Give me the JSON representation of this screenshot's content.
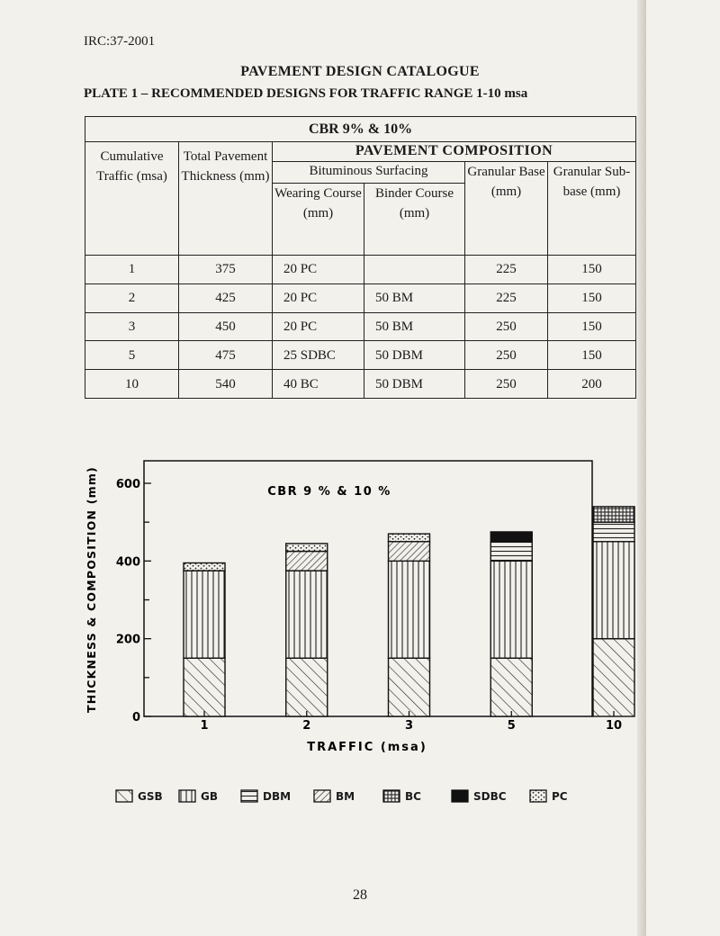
{
  "header": {
    "doc_id": "IRC:37-2001",
    "catalogue_title": "PAVEMENT DESIGN CATALOGUE",
    "plate_title": "PLATE 1 – RECOMMENDED DESIGNS FOR TRAFFIC RANGE 1-10 msa"
  },
  "table": {
    "cbr_label": "CBR 9% & 10%",
    "composition_label": "PAVEMENT COMPOSITION",
    "bituminous_label": "Bituminous Surfacing",
    "col_traffic": "Cumulative Traffic (msa)",
    "col_thickness": "Total Pavement Thickness (mm)",
    "col_wearing": "Wearing Course (mm)",
    "col_binder": "Binder Course (mm)",
    "col_base": "Granular Base (mm)",
    "col_subbase": "Granular Sub-base (mm)",
    "rows": [
      {
        "traffic": "1",
        "thickness": "375",
        "wearing": "20 PC",
        "binder": "",
        "base": "225",
        "subbase": "150"
      },
      {
        "traffic": "2",
        "thickness": "425",
        "wearing": "20 PC",
        "binder": "50 BM",
        "base": "225",
        "subbase": "150"
      },
      {
        "traffic": "3",
        "thickness": "450",
        "wearing": "20 PC",
        "binder": "50 BM",
        "base": "250",
        "subbase": "150"
      },
      {
        "traffic": "5",
        "thickness": "475",
        "wearing": "25 SDBC",
        "binder": "50 DBM",
        "base": "250",
        "subbase": "150"
      },
      {
        "traffic": "10",
        "thickness": "540",
        "wearing": "40 BC",
        "binder": "50 DBM",
        "base": "250",
        "subbase": "200"
      }
    ]
  },
  "chart_data": {
    "type": "bar",
    "stacked": true,
    "title": "CBR 9 % & 10 %",
    "xlabel": "TRAFFIC (msa)",
    "ylabel": "THICKNESS & COMPOSITION (mm)",
    "categories": [
      "1",
      "2",
      "3",
      "5",
      "10"
    ],
    "ylim": [
      0,
      650
    ],
    "yticks": [
      0,
      200,
      400,
      600
    ],
    "series": [
      {
        "name": "GSB",
        "values": [
          150,
          150,
          150,
          150,
          200
        ]
      },
      {
        "name": "GB",
        "values": [
          225,
          225,
          250,
          250,
          250
        ]
      },
      {
        "name": "DBM",
        "values": [
          0,
          0,
          0,
          50,
          50
        ]
      },
      {
        "name": "BM",
        "values": [
          0,
          50,
          50,
          0,
          0
        ]
      },
      {
        "name": "BC",
        "values": [
          0,
          0,
          0,
          0,
          40
        ]
      },
      {
        "name": "SDBC",
        "values": [
          0,
          0,
          0,
          25,
          0
        ]
      },
      {
        "name": "PC",
        "values": [
          20,
          20,
          20,
          0,
          0
        ]
      }
    ],
    "legend_position": "bottom"
  },
  "legend": [
    "GSB",
    "GB",
    "DBM",
    "BM",
    "BC",
    "SDBC",
    "PC"
  ],
  "footer": {
    "page_number": "28"
  }
}
